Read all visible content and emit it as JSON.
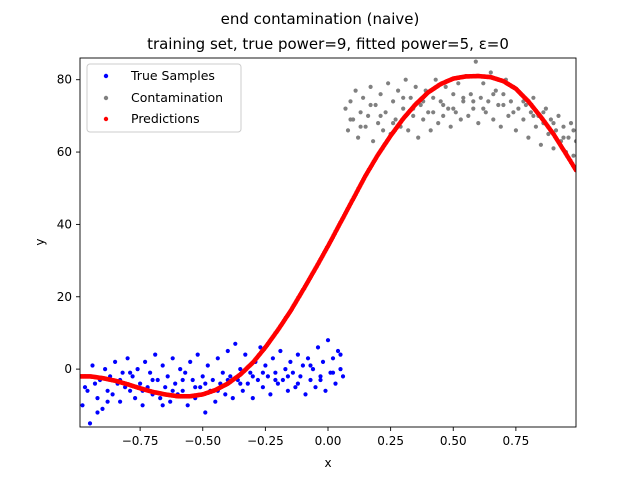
{
  "chart_data": {
    "type": "scatter",
    "title": "end contamination (naive)",
    "subtitle": "training set, true power=9, fitted power=5, ε=0",
    "xlabel": "x",
    "ylabel": "y",
    "xlim": [
      -0.99,
      0.99
    ],
    "ylim": [
      -16,
      86
    ],
    "xticks": [
      -0.75,
      -0.5,
      -0.25,
      0.0,
      0.25,
      0.5,
      0.75
    ],
    "xtick_labels": [
      "−0.75",
      "−0.50",
      "−0.25",
      "0.00",
      "0.25",
      "0.50",
      "0.75"
    ],
    "yticks": [
      0,
      20,
      40,
      60,
      80
    ],
    "ytick_labels": [
      "0",
      "20",
      "40",
      "60",
      "80"
    ],
    "grid": false,
    "legend_position": "top-left",
    "series": [
      {
        "name": "True Samples",
        "color": "#0000ff",
        "points": [
          [
            -0.98,
            -10
          ],
          [
            -0.97,
            -2
          ],
          [
            -0.96,
            -6
          ],
          [
            -0.95,
            -15
          ],
          [
            -0.94,
            1
          ],
          [
            -0.93,
            -4
          ],
          [
            -0.92,
            -8
          ],
          [
            -0.91,
            -3
          ],
          [
            -0.9,
            -11
          ],
          [
            -0.89,
            0
          ],
          [
            -0.88,
            -6
          ],
          [
            -0.87,
            -2
          ],
          [
            -0.86,
            -7
          ],
          [
            -0.85,
            2
          ],
          [
            -0.84,
            -4
          ],
          [
            -0.83,
            -9
          ],
          [
            -0.82,
            -1
          ],
          [
            -0.81,
            -5
          ],
          [
            -0.8,
            3
          ],
          [
            -0.79,
            -6
          ],
          [
            -0.78,
            -2
          ],
          [
            -0.77,
            -8
          ],
          [
            -0.76,
            0
          ],
          [
            -0.75,
            -4
          ],
          [
            -0.74,
            -10
          ],
          [
            -0.73,
            2
          ],
          [
            -0.72,
            -5
          ],
          [
            -0.71,
            -1
          ],
          [
            -0.7,
            -7
          ],
          [
            -0.69,
            4
          ],
          [
            -0.68,
            -3
          ],
          [
            -0.67,
            -8
          ],
          [
            -0.66,
            1
          ],
          [
            -0.65,
            -5
          ],
          [
            -0.64,
            -2
          ],
          [
            -0.63,
            -9
          ],
          [
            -0.62,
            3
          ],
          [
            -0.61,
            -4
          ],
          [
            -0.6,
            -7
          ],
          [
            -0.59,
            0
          ],
          [
            -0.58,
            -6
          ],
          [
            -0.57,
            -1
          ],
          [
            -0.56,
            -10
          ],
          [
            -0.55,
            2
          ],
          [
            -0.54,
            -3
          ],
          [
            -0.53,
            -8
          ],
          [
            -0.52,
            4
          ],
          [
            -0.51,
            -5
          ],
          [
            -0.5,
            -2
          ],
          [
            -0.49,
            -12
          ],
          [
            -0.48,
            1
          ],
          [
            -0.47,
            -6
          ],
          [
            -0.46,
            -3
          ],
          [
            -0.45,
            -9
          ],
          [
            -0.44,
            3
          ],
          [
            -0.43,
            -4
          ],
          [
            -0.42,
            -1
          ],
          [
            -0.41,
            -7
          ],
          [
            -0.4,
            5
          ],
          [
            -0.39,
            -2
          ],
          [
            -0.38,
            -8
          ],
          [
            -0.37,
            7
          ],
          [
            -0.36,
            -3
          ],
          [
            -0.35,
            0
          ],
          [
            -0.34,
            -6
          ],
          [
            -0.33,
            4
          ],
          [
            -0.32,
            -4
          ],
          [
            -0.31,
            -1
          ],
          [
            -0.3,
            -8
          ],
          [
            -0.29,
            2
          ],
          [
            -0.28,
            -3
          ],
          [
            -0.27,
            6
          ],
          [
            -0.26,
            -5
          ],
          [
            -0.25,
            1
          ],
          [
            -0.24,
            -2
          ],
          [
            -0.23,
            -7
          ],
          [
            -0.22,
            3
          ],
          [
            -0.21,
            -1
          ],
          [
            -0.2,
            -4
          ],
          [
            -0.19,
            5
          ],
          [
            -0.18,
            -3
          ],
          [
            -0.17,
            0
          ],
          [
            -0.16,
            -6
          ],
          [
            -0.15,
            2
          ],
          [
            -0.14,
            -1
          ],
          [
            -0.13,
            -5
          ],
          [
            -0.12,
            4
          ],
          [
            -0.11,
            -2
          ],
          [
            -0.1,
            1
          ],
          [
            -0.09,
            -7
          ],
          [
            -0.08,
            3
          ],
          [
            -0.07,
            -3
          ],
          [
            -0.06,
            0
          ],
          [
            -0.05,
            -5
          ],
          [
            -0.04,
            6
          ],
          [
            -0.03,
            -2
          ],
          [
            -0.02,
            2
          ],
          [
            -0.01,
            -6
          ],
          [
            0.0,
            8
          ],
          [
            0.01,
            -1
          ],
          [
            0.02,
            3
          ],
          [
            0.03,
            -4
          ],
          [
            0.04,
            5
          ],
          [
            0.05,
            0
          ],
          [
            0.06,
            -2
          ],
          [
            -0.97,
            -5
          ],
          [
            -0.92,
            -12
          ],
          [
            -0.88,
            -9
          ],
          [
            -0.83,
            -3
          ],
          [
            -0.79,
            -1
          ],
          [
            -0.74,
            -6
          ],
          [
            -0.7,
            -3
          ],
          [
            -0.66,
            -10
          ],
          [
            -0.62,
            -6
          ],
          [
            -0.58,
            -3
          ],
          [
            -0.53,
            -5
          ],
          [
            -0.49,
            -4
          ],
          [
            -0.44,
            -6
          ],
          [
            -0.4,
            -3
          ],
          [
            -0.35,
            -4
          ],
          [
            -0.3,
            -2
          ],
          [
            -0.26,
            -1
          ],
          [
            -0.21,
            -3
          ],
          [
            -0.16,
            -2
          ],
          [
            -0.12,
            -4
          ],
          [
            -0.07,
            1
          ],
          [
            -0.03,
            -3
          ],
          [
            0.02,
            -1
          ],
          [
            0.05,
            4
          ]
        ]
      },
      {
        "name": "Contamination",
        "color": "#808080",
        "points": [
          [
            0.07,
            72
          ],
          [
            0.08,
            66
          ],
          [
            0.09,
            74
          ],
          [
            0.1,
            69
          ],
          [
            0.11,
            77
          ],
          [
            0.12,
            64
          ],
          [
            0.13,
            71
          ],
          [
            0.14,
            75
          ],
          [
            0.15,
            67
          ],
          [
            0.16,
            70
          ],
          [
            0.17,
            78
          ],
          [
            0.18,
            63
          ],
          [
            0.19,
            73
          ],
          [
            0.2,
            68
          ],
          [
            0.21,
            76
          ],
          [
            0.22,
            66
          ],
          [
            0.23,
            71
          ],
          [
            0.24,
            79
          ],
          [
            0.25,
            65
          ],
          [
            0.26,
            74
          ],
          [
            0.27,
            69
          ],
          [
            0.28,
            77
          ],
          [
            0.29,
            67
          ],
          [
            0.3,
            72
          ],
          [
            0.31,
            80
          ],
          [
            0.32,
            66
          ],
          [
            0.33,
            75
          ],
          [
            0.34,
            70
          ],
          [
            0.35,
            78
          ],
          [
            0.36,
            64
          ],
          [
            0.37,
            73
          ],
          [
            0.38,
            69
          ],
          [
            0.39,
            77
          ],
          [
            0.4,
            71
          ],
          [
            0.41,
            66
          ],
          [
            0.42,
            75
          ],
          [
            0.43,
            80
          ],
          [
            0.44,
            68
          ],
          [
            0.45,
            74
          ],
          [
            0.46,
            70
          ],
          [
            0.47,
            78
          ],
          [
            0.48,
            72
          ],
          [
            0.49,
            67
          ],
          [
            0.5,
            76
          ],
          [
            0.51,
            71
          ],
          [
            0.52,
            79
          ],
          [
            0.53,
            69
          ],
          [
            0.54,
            74
          ],
          [
            0.55,
            81
          ],
          [
            0.56,
            70
          ],
          [
            0.57,
            76
          ],
          [
            0.58,
            72
          ],
          [
            0.59,
            85
          ],
          [
            0.6,
            68
          ],
          [
            0.61,
            75
          ],
          [
            0.62,
            79
          ],
          [
            0.63,
            71
          ],
          [
            0.64,
            74
          ],
          [
            0.65,
            82
          ],
          [
            0.66,
            69
          ],
          [
            0.67,
            77
          ],
          [
            0.68,
            73
          ],
          [
            0.69,
            67
          ],
          [
            0.7,
            76
          ],
          [
            0.71,
            80
          ],
          [
            0.72,
            70
          ],
          [
            0.73,
            74
          ],
          [
            0.74,
            78
          ],
          [
            0.75,
            66
          ],
          [
            0.76,
            72
          ],
          [
            0.77,
            76
          ],
          [
            0.78,
            69
          ],
          [
            0.79,
            73
          ],
          [
            0.8,
            64
          ],
          [
            0.81,
            71
          ],
          [
            0.82,
            75
          ],
          [
            0.83,
            67
          ],
          [
            0.84,
            70
          ],
          [
            0.85,
            62
          ],
          [
            0.86,
            68
          ],
          [
            0.87,
            72
          ],
          [
            0.88,
            65
          ],
          [
            0.89,
            69
          ],
          [
            0.9,
            61
          ],
          [
            0.91,
            66
          ],
          [
            0.92,
            70
          ],
          [
            0.93,
            63
          ],
          [
            0.94,
            67
          ],
          [
            0.95,
            60
          ],
          [
            0.96,
            64
          ],
          [
            0.97,
            68
          ],
          [
            0.98,
            59
          ],
          [
            0.99,
            63
          ],
          [
            0.09,
            69
          ],
          [
            0.13,
            67
          ],
          [
            0.17,
            73
          ],
          [
            0.21,
            70
          ],
          [
            0.26,
            68
          ],
          [
            0.3,
            75
          ],
          [
            0.34,
            72
          ],
          [
            0.38,
            74
          ],
          [
            0.42,
            71
          ],
          [
            0.46,
            73
          ],
          [
            0.5,
            72
          ],
          [
            0.54,
            75
          ],
          [
            0.58,
            74
          ],
          [
            0.62,
            72
          ],
          [
            0.66,
            76
          ],
          [
            0.7,
            73
          ],
          [
            0.74,
            71
          ],
          [
            0.78,
            74
          ],
          [
            0.82,
            70
          ],
          [
            0.86,
            71
          ],
          [
            0.9,
            68
          ],
          [
            0.94,
            64
          ],
          [
            0.98,
            66
          ]
        ]
      },
      {
        "name": "Predictions",
        "color": "#ff0000",
        "curve_x": [
          -0.99,
          -0.95,
          -0.9,
          -0.85,
          -0.8,
          -0.75,
          -0.7,
          -0.65,
          -0.6,
          -0.55,
          -0.5,
          -0.45,
          -0.4,
          -0.35,
          -0.3,
          -0.25,
          -0.2,
          -0.15,
          -0.1,
          -0.05,
          0.0,
          0.05,
          0.1,
          0.15,
          0.2,
          0.25,
          0.3,
          0.35,
          0.4,
          0.45,
          0.5,
          0.55,
          0.6,
          0.65,
          0.7,
          0.75,
          0.8,
          0.85,
          0.9,
          0.95,
          0.99
        ],
        "curve_y": [
          -2,
          -2,
          -2.5,
          -3.2,
          -4.2,
          -5.3,
          -6.3,
          -7,
          -7.5,
          -7.5,
          -7,
          -5.8,
          -4,
          -1.5,
          1.8,
          6,
          10.8,
          16,
          21.8,
          27.8,
          34,
          40.5,
          47,
          53.5,
          59.3,
          64.5,
          69.2,
          73.2,
          76.5,
          78.8,
          80.3,
          80.9,
          81,
          80.7,
          79.6,
          77.5,
          74,
          69.7,
          65,
          59.5,
          55
        ]
      }
    ]
  }
}
